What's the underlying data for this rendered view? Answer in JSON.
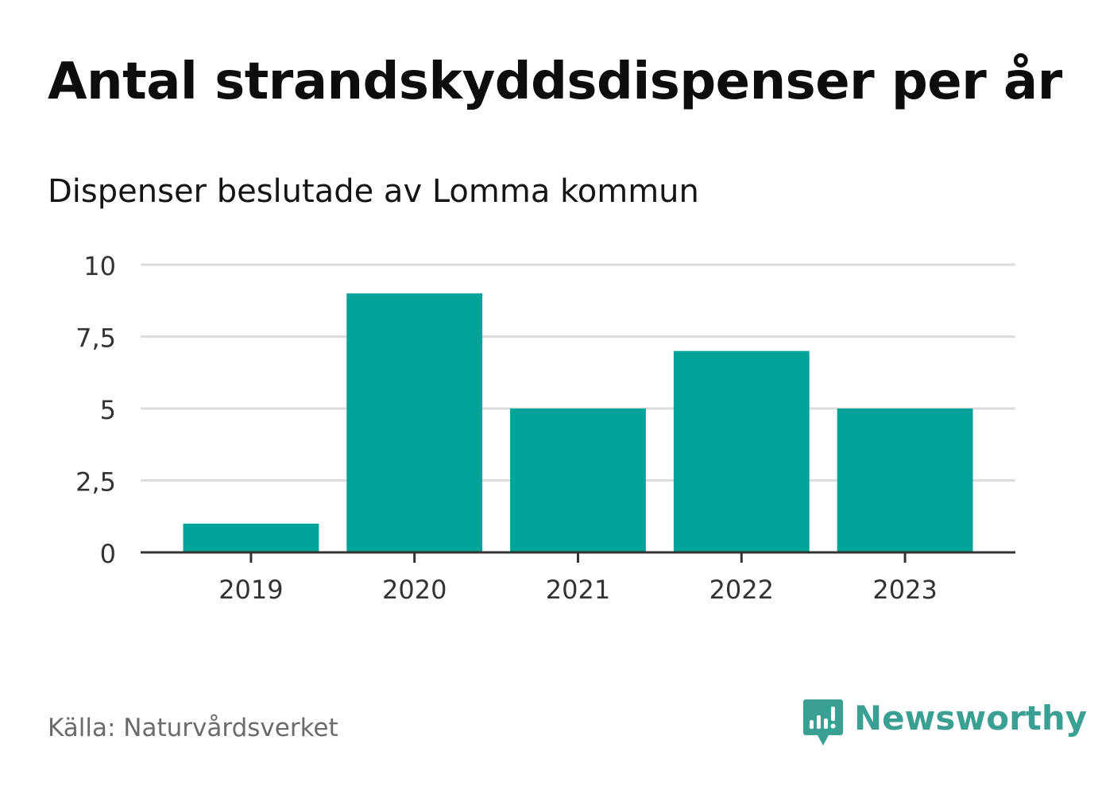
{
  "title": "Antal strandskyddsdispenser per år",
  "subtitle": "Dispenser beslutade av Lomma kommun",
  "source": "Källa: Naturvårdsverket",
  "brand": {
    "name": "Newsworthy",
    "icon": "newsworthy-logo-icon",
    "color": "#3aa093"
  },
  "colors": {
    "bar": "#00a39a",
    "grid": "#dcdcdc",
    "axis": "#333333",
    "tick_text": "#333333"
  },
  "chart_data": {
    "type": "bar",
    "title": "Antal strandskyddsdispenser per år",
    "subtitle": "Dispenser beslutade av Lomma kommun",
    "xlabel": "",
    "ylabel": "",
    "categories": [
      "2019",
      "2020",
      "2021",
      "2022",
      "2023"
    ],
    "values": [
      1,
      9,
      5,
      7,
      5
    ],
    "ylim": [
      0,
      10
    ],
    "yticks": [
      0,
      2.5,
      5,
      7.5,
      10
    ],
    "ytick_labels": [
      "0",
      "2,5",
      "5",
      "7,5",
      "10"
    ],
    "grid": true,
    "legend": "none"
  }
}
